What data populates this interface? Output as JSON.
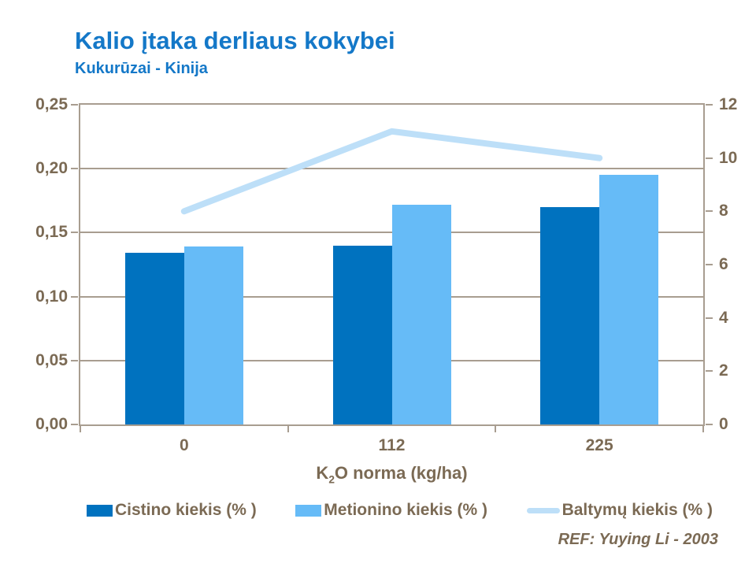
{
  "header": {
    "title": "Kalio įtaka derliaus kokybei",
    "subtitle": "Kukurūzai - Kinija"
  },
  "footer": {
    "ref": "REF: Yuying Li - 2003"
  },
  "colors": {
    "title_blue": "#1478C8",
    "axis_text": "#7B6A54",
    "grid_line": "#A89D90",
    "bar_dark_blue": "#0072BF",
    "bar_light_blue": "#66BBF7",
    "line_light_blue": "#BDDFF8"
  },
  "chart_data": {
    "type": "bar",
    "subtype": "bar-and-line-combo",
    "categories": [
      "0",
      "112",
      "225"
    ],
    "series": [
      {
        "id": "cistino",
        "name": "Cistino kiekis (% )",
        "type": "bar",
        "axis": "left",
        "color": "#0072BF",
        "values": [
          0.134,
          0.14,
          0.17
        ]
      },
      {
        "id": "metionino",
        "name": "Metionino kiekis (% )",
        "type": "bar",
        "axis": "left",
        "color": "#66BBF7",
        "values": [
          0.139,
          0.172,
          0.195
        ]
      },
      {
        "id": "baltymu",
        "name": "Baltymų kiekis (% )",
        "type": "line",
        "axis": "right",
        "color": "#BDDFF8",
        "values": [
          8.0,
          11.0,
          10.0
        ]
      }
    ],
    "left_axis": {
      "min": 0,
      "max": 0.25,
      "step": 0.05,
      "tick_labels": [
        "0,00",
        "0,05",
        "0,10",
        "0,15",
        "0,20",
        "0,25"
      ]
    },
    "right_axis": {
      "min": 0,
      "max": 12,
      "step": 2,
      "tick_labels": [
        "0",
        "2",
        "4",
        "6",
        "8",
        "10",
        "12"
      ]
    },
    "xlabel": {
      "prefix": "K",
      "sub": "2",
      "suffix": "O norma (kg/ha)"
    },
    "grid": true,
    "legend_position": "bottom"
  }
}
